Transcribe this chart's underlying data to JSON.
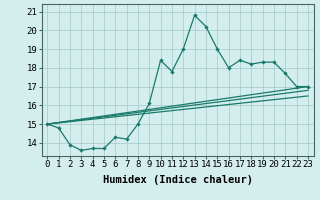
{
  "x": [
    0,
    1,
    2,
    3,
    4,
    5,
    6,
    7,
    8,
    9,
    10,
    11,
    12,
    13,
    14,
    15,
    16,
    17,
    18,
    19,
    20,
    21,
    22,
    23
  ],
  "main_line": [
    15.0,
    14.8,
    13.9,
    13.6,
    13.7,
    13.7,
    14.3,
    14.2,
    15.0,
    16.1,
    18.4,
    17.8,
    19.0,
    20.8,
    20.2,
    19.0,
    18.0,
    18.4,
    18.2,
    18.3,
    18.3,
    17.7,
    17.0,
    17.0
  ],
  "trend_lines": [
    [
      15.0,
      17.0
    ],
    [
      15.0,
      16.5
    ],
    [
      15.0,
      16.8
    ]
  ],
  "color": "#1a7a6a",
  "bg_color": "#d4eeee",
  "grid_color": "#aacece",
  "xlabel": "Humidex (Indice chaleur)",
  "ylabel_ticks": [
    14,
    15,
    16,
    17,
    18,
    19,
    20,
    21
  ],
  "ylim": [
    13.3,
    21.4
  ],
  "xlim": [
    -0.5,
    23.5
  ],
  "xlabel_fontsize": 7.5,
  "tick_fontsize": 6.5
}
